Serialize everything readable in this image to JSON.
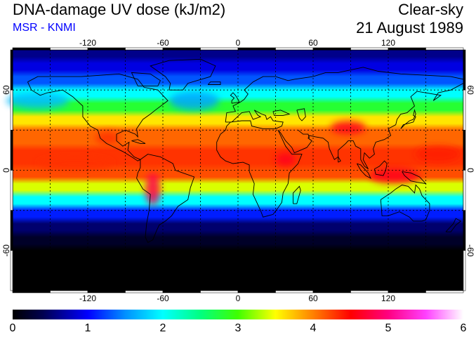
{
  "header": {
    "title": "DNA-damage UV dose (kJ/m2)",
    "source": "MSR - KNMI",
    "sky_condition": "Clear-sky",
    "date": "21 August 1989"
  },
  "map": {
    "projection": "equirectangular",
    "lon_range": [
      -180,
      180
    ],
    "lat_range": [
      -90,
      90
    ],
    "lon_ticks": [
      "-120",
      "-60",
      "0",
      "60",
      "120"
    ],
    "lat_ticks": [
      "60",
      "0",
      "-60"
    ],
    "gridlines": "dashed every 30 degrees",
    "palette_stops": [
      {
        "value": 0.0,
        "color": "#000000"
      },
      {
        "value": 0.4,
        "color": "#000050"
      },
      {
        "value": 1.0,
        "color": "#0000ff"
      },
      {
        "value": 1.5,
        "color": "#0090ff"
      },
      {
        "value": 2.0,
        "color": "#00ffff"
      },
      {
        "value": 2.5,
        "color": "#00ff80"
      },
      {
        "value": 3.0,
        "color": "#40ff00"
      },
      {
        "value": 3.5,
        "color": "#ffff00"
      },
      {
        "value": 4.0,
        "color": "#ff8000"
      },
      {
        "value": 4.5,
        "color": "#ff0000"
      },
      {
        "value": 5.0,
        "color": "#ff0080"
      },
      {
        "value": 5.5,
        "color": "#ff40ff"
      },
      {
        "value": 6.0,
        "color": "#ffffff"
      }
    ]
  },
  "colorbar": {
    "ticks": [
      "0",
      "1",
      "2",
      "3",
      "4",
      "5",
      "6"
    ],
    "min": 0,
    "max": 6
  }
}
